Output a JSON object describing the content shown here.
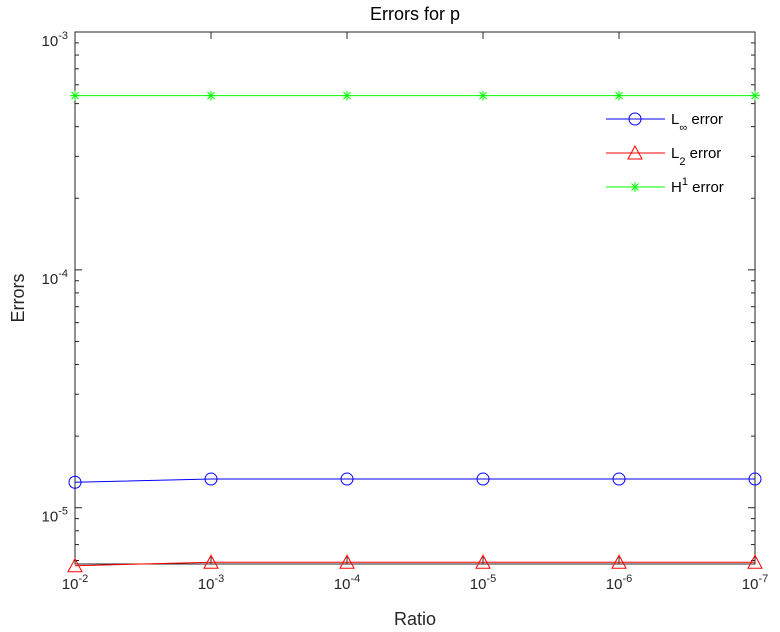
{
  "chart_data": {
    "type": "line",
    "title": "Errors for p",
    "xlabel": "Ratio",
    "ylabel": "Errors",
    "x_scale": "log-reversed",
    "y_scale": "log",
    "x": [
      0.01,
      0.001,
      0.0001,
      1e-05,
      1e-06,
      1e-07
    ],
    "x_ticks": [
      {
        "value": 0.01,
        "base": "10",
        "exp": "-2"
      },
      {
        "value": 0.001,
        "base": "10",
        "exp": "-3"
      },
      {
        "value": 0.0001,
        "base": "10",
        "exp": "-4"
      },
      {
        "value": 1e-05,
        "base": "10",
        "exp": "-5"
      },
      {
        "value": 1e-06,
        "base": "10",
        "exp": "-6"
      },
      {
        "value": 1e-07,
        "base": "10",
        "exp": "-7"
      }
    ],
    "y_ticks": [
      {
        "value": 0.001,
        "base": "10",
        "exp": "-3"
      },
      {
        "value": 0.0001,
        "base": "10",
        "exp": "-4"
      },
      {
        "value": 1e-05,
        "base": "10",
        "exp": "-5"
      }
    ],
    "ylim": [
      5.8e-06,
      0.001
    ],
    "grid": false,
    "legend_position": "top-right",
    "series": [
      {
        "name_main": "L",
        "name_sub": "∞",
        "name_sup": "",
        "name_rest": " error",
        "color": "#0000ff",
        "marker": "circle",
        "values": [
          1.28e-05,
          1.32e-05,
          1.32e-05,
          1.32e-05,
          1.32e-05,
          1.32e-05
        ]
      },
      {
        "name_main": "L",
        "name_sub": "2",
        "name_sup": "",
        "name_rest": " error",
        "color": "#ff0000",
        "marker": "triangle",
        "values": [
          5.7e-06,
          5.9e-06,
          5.9e-06,
          5.9e-06,
          5.9e-06,
          5.9e-06
        ]
      },
      {
        "name_main": "H",
        "name_sub": "",
        "name_sup": "1",
        "name_rest": " error",
        "color": "#00ff00",
        "marker": "asterisk",
        "values": [
          0.00054,
          0.00054,
          0.00054,
          0.00054,
          0.00054,
          0.00054
        ]
      }
    ]
  }
}
